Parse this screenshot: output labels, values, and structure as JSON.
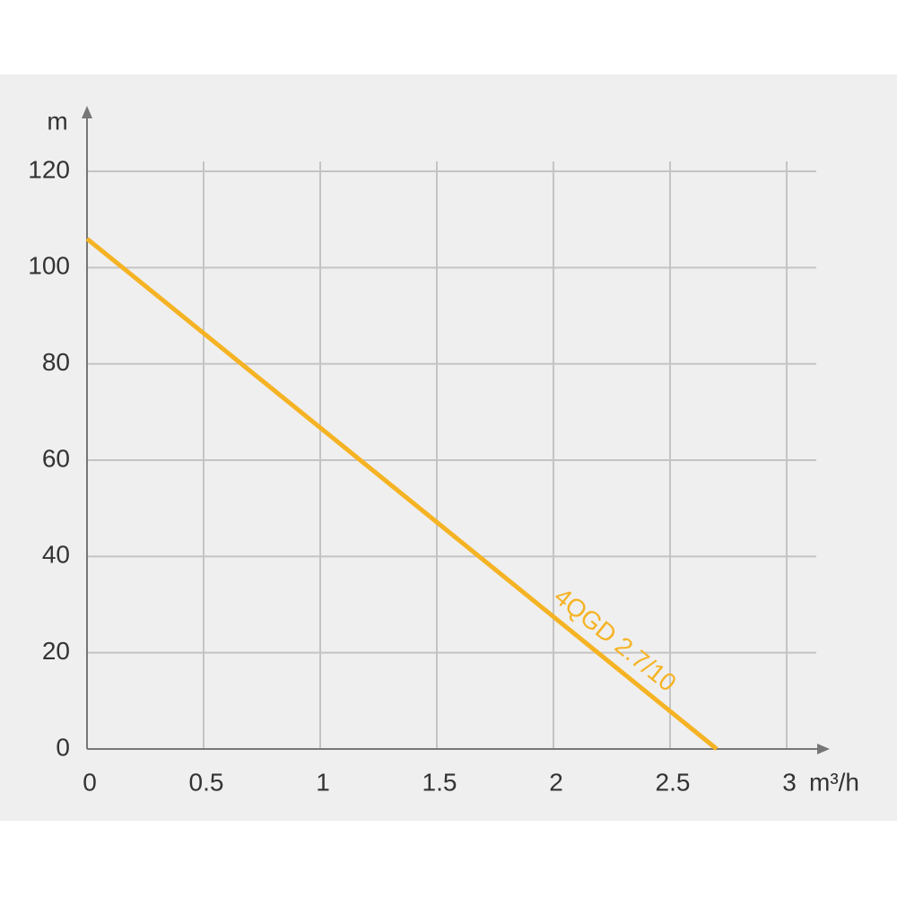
{
  "chart_data": {
    "type": "line",
    "x": [
      0,
      2.7
    ],
    "series": [
      {
        "name": "4QGD 2.7/10",
        "color": "#f5b324",
        "values": [
          106,
          0
        ]
      }
    ],
    "xlim": [
      0,
      3
    ],
    "ylim": [
      0,
      120
    ],
    "xticks": [
      0,
      0.5,
      1,
      1.5,
      2,
      2.5,
      3
    ],
    "yticks": [
      0,
      20,
      40,
      60,
      80,
      100,
      120
    ],
    "x_label": "m³/h",
    "y_label": "m",
    "grid": true
  }
}
